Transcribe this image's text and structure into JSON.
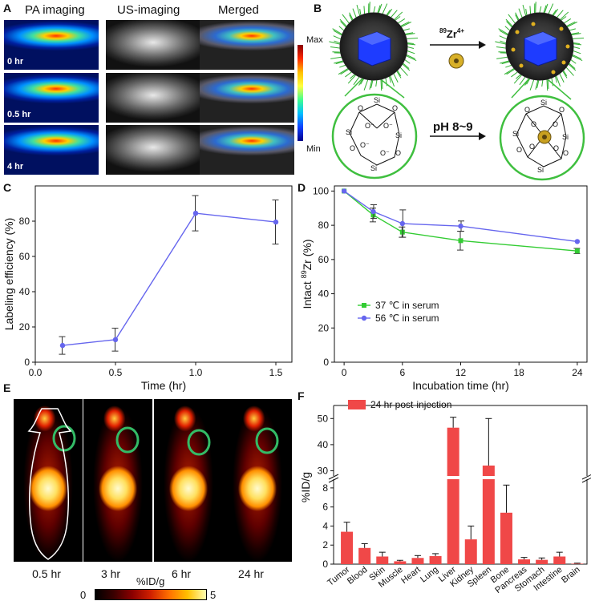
{
  "panelA": {
    "label": "A",
    "headers": [
      "PA imaging",
      "US-imaging",
      "Merged"
    ],
    "rows": [
      "0 hr",
      "0.5 hr",
      "4 hr"
    ],
    "scale_max": "Max",
    "scale_min": "Min"
  },
  "panelB": {
    "label": "B",
    "reagent_prefix": "89",
    "reagent": "Zr",
    "reagent_charge": "4+",
    "condition": "pH 8~9",
    "si": "Si",
    "o": "O",
    "o_minus": "O⁻"
  },
  "panelE": {
    "label": "E",
    "timepoints": [
      "0.5 hr",
      "3 hr",
      "6 hr",
      "24 hr"
    ],
    "unit": "%ID/g",
    "scale_min": "0",
    "scale_max": "5"
  },
  "colors": {
    "blue_series": "#6666ee",
    "green_series": "#33cc33",
    "bar": "#f04848",
    "roi": "#33bb66"
  },
  "chart_data": [
    {
      "panel": "C",
      "type": "line",
      "xlabel": "Time (hr)",
      "ylabel": "Labeling efficiency (%)",
      "xlim": [
        0,
        1.6
      ],
      "ylim": [
        0,
        100
      ],
      "xticks": [
        0.0,
        0.5,
        1.0,
        1.5
      ],
      "xtick_labels": [
        "0.0",
        "0.5",
        "1.0",
        "1.5"
      ],
      "yticks": [
        0,
        20,
        40,
        60,
        80
      ],
      "ytick_labels": [
        "0",
        "20",
        "40",
        "60",
        "80"
      ],
      "series": [
        {
          "name": "Labeling efficiency",
          "x": [
            0.17,
            0.5,
            1.0,
            1.5
          ],
          "values": [
            9.5,
            12.8,
            84.5,
            79.5
          ],
          "errors": [
            5,
            6.5,
            10,
            12.5
          ]
        }
      ]
    },
    {
      "panel": "D",
      "type": "line",
      "xlabel": "Incubation time (hr)",
      "ylabel_prefix": "Intact ",
      "ylabel_sup": "89",
      "ylabel_suffix": "Zr (%)",
      "xlim": [
        -1,
        25
      ],
      "ylim": [
        0,
        103
      ],
      "xticks": [
        0,
        6,
        12,
        18,
        24
      ],
      "xtick_labels": [
        "0",
        "6",
        "12",
        "18",
        "24"
      ],
      "yticks": [
        0,
        20,
        40,
        60,
        80,
        100
      ],
      "ytick_labels": [
        "0",
        "20",
        "40",
        "60",
        "80",
        "100"
      ],
      "legend_position": "center-left",
      "series": [
        {
          "name": "37 ℃ in serum",
          "x": [
            0,
            3,
            6,
            12,
            24
          ],
          "values": [
            100,
            86,
            76,
            71,
            65
          ],
          "errors": [
            0,
            4,
            3,
            5.5,
            1.5
          ]
        },
        {
          "name": "56 ℃ in serum",
          "x": [
            0,
            3,
            6,
            12,
            24
          ],
          "values": [
            100,
            88,
            81,
            79.5,
            70.5
          ],
          "errors": [
            0,
            4,
            8,
            3,
            0
          ]
        }
      ]
    },
    {
      "panel": "F",
      "type": "bar",
      "ylabel": "%ID/g",
      "legend": "24 hr post-injection",
      "legend_position": "top-left",
      "categories": [
        "Tumor",
        "Blood",
        "Skin",
        "Muscle",
        "Heart",
        "Lung",
        "Liver",
        "Kidney",
        "Spleen",
        "Bone",
        "Pancreas",
        "Stomach",
        "Intestine",
        "Brain"
      ],
      "values": [
        3.4,
        1.7,
        0.8,
        0.3,
        0.65,
        0.85,
        46.5,
        2.6,
        32,
        5.4,
        0.5,
        0.45,
        0.8,
        0.05
      ],
      "errors": [
        1.0,
        0.45,
        0.45,
        0.1,
        0.25,
        0.25,
        4,
        1.4,
        18,
        2.9,
        0.2,
        0.2,
        0.45,
        0.05
      ],
      "axis_break": [
        9,
        28
      ],
      "lower_range": [
        0,
        9
      ],
      "upper_range": [
        28,
        55
      ],
      "yticks_lower": [
        0,
        2,
        4,
        6,
        8
      ],
      "ytick_labels_lower": [
        "0",
        "2",
        "4",
        "6",
        "8"
      ],
      "yticks_upper": [
        30,
        40,
        50
      ],
      "ytick_labels_upper": [
        "30",
        "40",
        "50"
      ]
    }
  ]
}
